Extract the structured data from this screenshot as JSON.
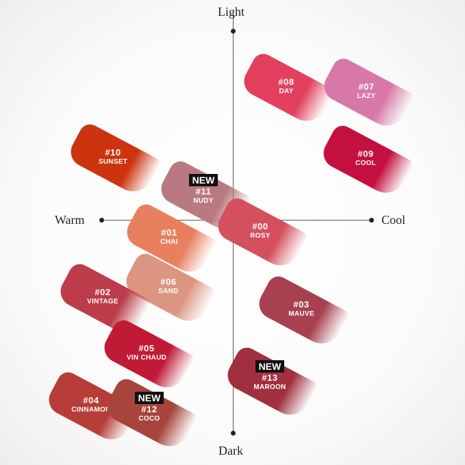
{
  "axes": {
    "top": "Light",
    "bottom": "Dark",
    "left": "Warm",
    "right": "Cool"
  },
  "new_badge": "NEW",
  "shades": [
    {
      "num": "#08",
      "name": "DAY",
      "color": "#e2405e",
      "is_new": false
    },
    {
      "num": "#07",
      "name": "LAZY",
      "color": "#d878a8",
      "is_new": false
    },
    {
      "num": "#09",
      "name": "COOL",
      "color": "#c4103f",
      "is_new": false
    },
    {
      "num": "#10",
      "name": "SUNSET",
      "color": "#cc3410",
      "is_new": false
    },
    {
      "num": "#11",
      "name": "NUDY",
      "color": "#b87a80",
      "is_new": true
    },
    {
      "num": "#00",
      "name": "ROSY",
      "color": "#d4505e",
      "is_new": false
    },
    {
      "num": "#01",
      "name": "CHAI",
      "color": "#e88060",
      "is_new": false
    },
    {
      "num": "#06",
      "name": "SAND",
      "color": "#dc9580",
      "is_new": false
    },
    {
      "num": "#02",
      "name": "VINTAGE",
      "color": "#bc3c4c",
      "is_new": false
    },
    {
      "num": "#03",
      "name": "MAUVE",
      "color": "#a84050",
      "is_new": false
    },
    {
      "num": "#05",
      "name": "VIN CHAUD",
      "color": "#c01a36",
      "is_new": false
    },
    {
      "num": "#13",
      "name": "MAROON",
      "color": "#a03040",
      "is_new": true
    },
    {
      "num": "#04",
      "name": "CINNAMON",
      "color": "#b83c38",
      "is_new": false
    },
    {
      "num": "#12",
      "name": "COCO",
      "color": "#a8443c",
      "is_new": true
    }
  ]
}
